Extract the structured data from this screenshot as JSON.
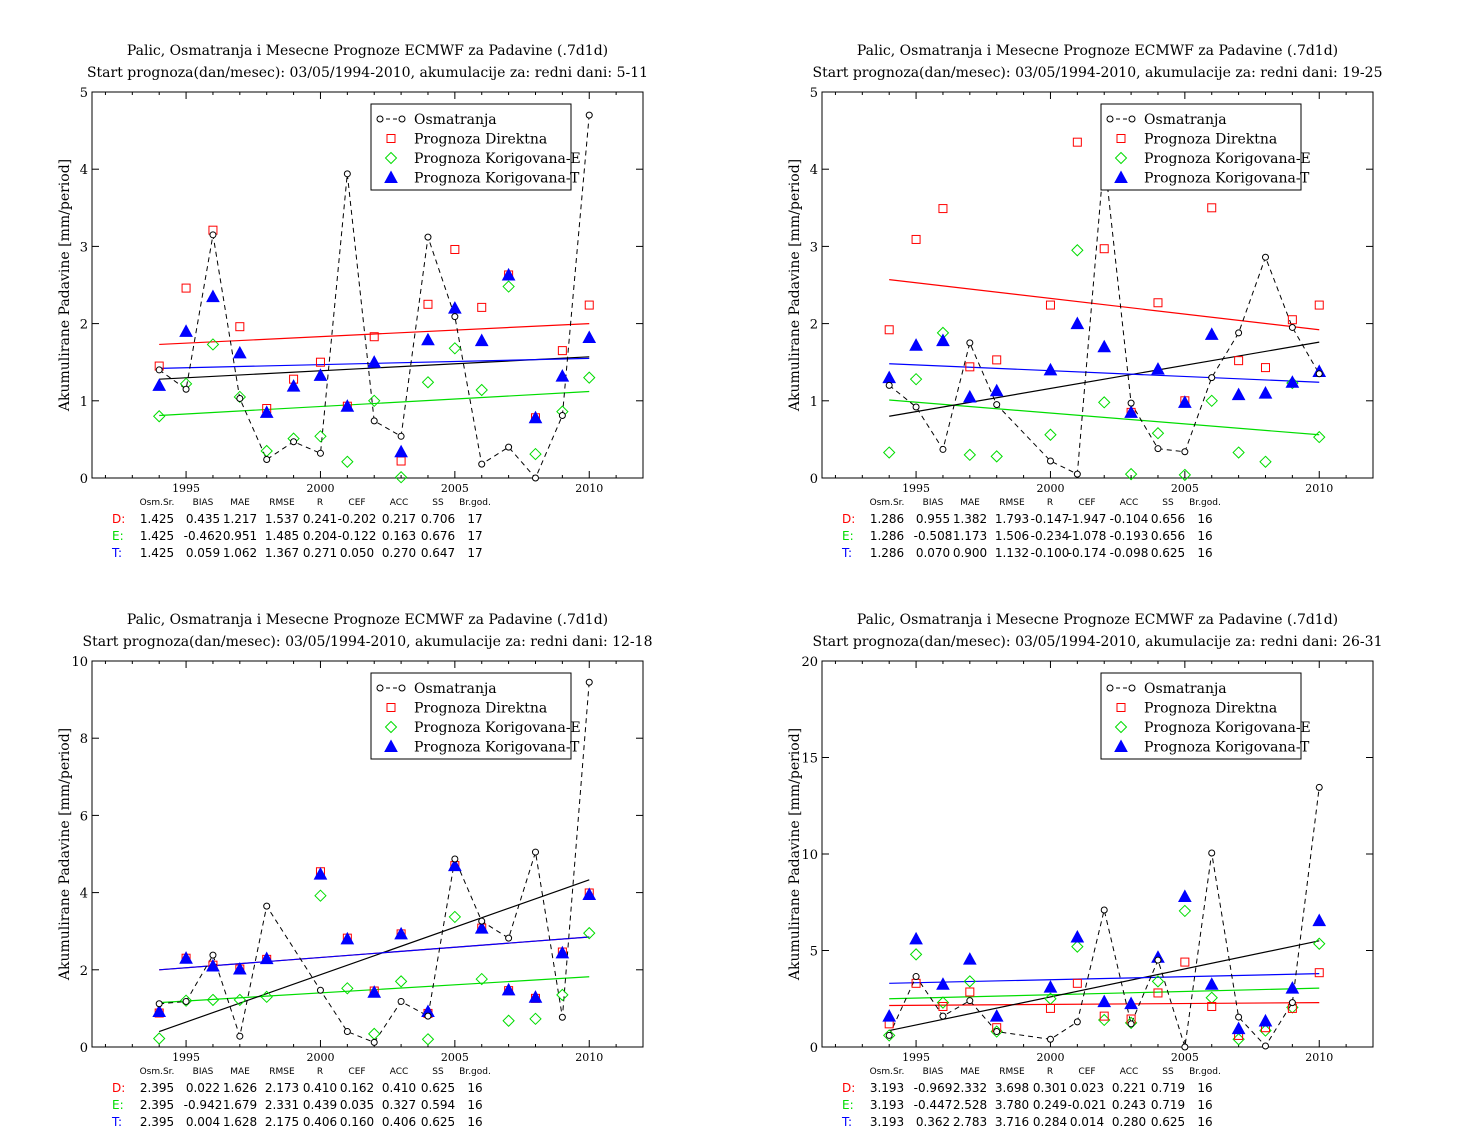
{
  "legend_labels": {
    "obs": "Osmatranja",
    "D": "Prognoza Direktna",
    "E": "Prognoza Korigovana-E",
    "T": "Prognoza Korigovana-T"
  },
  "series_colors": {
    "obs": "#000000",
    "D": "#ff0000",
    "E": "#00dd00",
    "T": "#0000ff"
  },
  "stats_headers": [
    "Osm.Sr.",
    "BIAS",
    "MAE",
    "RMSE",
    "R",
    "CEF",
    "ACC",
    "SS",
    "Br.god."
  ],
  "chart_data": [
    {
      "type": "scatter",
      "title": "Palic, Osmatranja i Mesecne Prognoze ECMWF za Padavine (.7d1d)",
      "subtitle": "Start prognoza(dan/mesec): 03/05/1994-2010, akumulacije za: redni dani: 5-11",
      "xlabel": "",
      "ylabel": "Akumulirane Padavine [mm/period]",
      "xlim": [
        1991.5,
        2012
      ],
      "ylim": [
        0,
        5
      ],
      "xticks": [
        1995,
        2000,
        2005,
        2010
      ],
      "yticks": [
        0,
        1,
        2,
        3,
        4,
        5
      ],
      "x": [
        1994,
        1995,
        1996,
        1997,
        1998,
        1999,
        2000,
        2001,
        2002,
        2003,
        2004,
        2005,
        2006,
        2007,
        2008,
        2009,
        2010
      ],
      "series": [
        {
          "key": "obs",
          "name": "Osmatranja",
          "values": [
            1.4,
            1.15,
            3.15,
            1.03,
            0.24,
            0.47,
            0.32,
            3.94,
            0.74,
            0.54,
            3.12,
            2.09,
            0.18,
            0.4,
            0.0,
            0.81,
            4.7
          ],
          "trend": [
            1.28,
            1.57
          ]
        },
        {
          "key": "D",
          "name": "Prognoza Direktna",
          "values": [
            1.45,
            2.46,
            3.21,
            1.96,
            0.9,
            1.28,
            1.5,
            0.93,
            1.83,
            0.22,
            2.25,
            2.96,
            2.21,
            2.63,
            0.78,
            1.65,
            2.24
          ],
          "trend": [
            1.73,
            2.0
          ]
        },
        {
          "key": "E",
          "name": "Prognoza Korigovana-E",
          "values": [
            0.8,
            1.22,
            1.73,
            1.05,
            0.35,
            0.51,
            0.54,
            0.21,
            1.0,
            0.01,
            1.24,
            1.68,
            1.14,
            2.48,
            0.31,
            0.86,
            1.3
          ],
          "trend": [
            0.81,
            1.12
          ]
        },
        {
          "key": "T",
          "name": "Prognoza Korigovana-T",
          "values": [
            1.2,
            1.9,
            2.35,
            1.62,
            0.85,
            1.19,
            1.33,
            0.93,
            1.5,
            0.34,
            1.79,
            2.2,
            1.78,
            2.63,
            0.78,
            1.32,
            1.82
          ],
          "trend": [
            1.42,
            1.55
          ]
        }
      ],
      "stats": [
        {
          "key": "D",
          "label": "D:",
          "values": [
            "1.425",
            "0.435",
            "1.217",
            "1.537",
            "0.241",
            "-0.202",
            "0.217",
            "0.706",
            "17"
          ]
        },
        {
          "key": "E",
          "label": "E:",
          "values": [
            "1.425",
            "-0.462",
            "0.951",
            "1.485",
            "0.204",
            "-0.122",
            "0.163",
            "0.676",
            "17"
          ]
        },
        {
          "key": "T",
          "label": "T:",
          "values": [
            "1.425",
            "0.059",
            "1.062",
            "1.367",
            "0.271",
            "0.050",
            "0.270",
            "0.647",
            "17"
          ]
        }
      ]
    },
    {
      "type": "scatter",
      "title": "Palic, Osmatranja i Mesecne Prognoze ECMWF za Padavine (.7d1d)",
      "subtitle": "Start prognoza(dan/mesec): 03/05/1994-2010, akumulacije za: redni dani: 19-25",
      "xlabel": "",
      "ylabel": "Akumulirane Padavine [mm/period]",
      "xlim": [
        1991.5,
        2012
      ],
      "ylim": [
        0,
        5
      ],
      "xticks": [
        1995,
        2000,
        2005,
        2010
      ],
      "yticks": [
        0,
        1,
        2,
        3,
        4,
        5
      ],
      "x": [
        1994,
        1995,
        1996,
        1997,
        1998,
        1999,
        2000,
        2001,
        2002,
        2003,
        2004,
        2005,
        2006,
        2007,
        2008,
        2009,
        2010
      ],
      "series": [
        {
          "key": "obs",
          "name": "Osmatranja",
          "values": [
            1.2,
            0.92,
            0.37,
            1.75,
            0.95,
            null,
            0.22,
            0.05,
            4.17,
            0.97,
            0.38,
            0.34,
            1.3,
            1.88,
            2.86,
            1.95,
            1.35
          ],
          "trend": [
            0.8,
            1.76
          ]
        },
        {
          "key": "D",
          "name": "Prognoza Direktna",
          "values": [
            1.92,
            3.09,
            3.49,
            1.44,
            1.53,
            null,
            2.24,
            4.35,
            2.97,
            0.85,
            2.27,
            1.0,
            3.5,
            1.52,
            1.43,
            2.05,
            2.24
          ],
          "trend": [
            2.57,
            1.92
          ]
        },
        {
          "key": "E",
          "name": "Prognoza Korigovana-E",
          "values": [
            0.33,
            1.28,
            1.88,
            0.3,
            0.28,
            null,
            0.56,
            2.95,
            0.98,
            0.05,
            0.58,
            0.04,
            1.0,
            0.33,
            0.21,
            1.23,
            0.53
          ],
          "trend": [
            1.01,
            0.56
          ]
        },
        {
          "key": "T",
          "name": "Prognoza Korigovana-T",
          "values": [
            1.3,
            1.72,
            1.78,
            1.05,
            1.13,
            null,
            1.4,
            2.0,
            1.7,
            0.85,
            1.41,
            0.98,
            1.86,
            1.08,
            1.1,
            1.24,
            1.38
          ],
          "trend": [
            1.48,
            1.24
          ]
        }
      ],
      "stats": [
        {
          "key": "D",
          "label": "D:",
          "values": [
            "1.286",
            "0.955",
            "1.382",
            "1.793",
            "-0.147",
            "-1.947",
            "-0.104",
            "0.656",
            "16"
          ]
        },
        {
          "key": "E",
          "label": "E:",
          "values": [
            "1.286",
            "-0.508",
            "1.173",
            "1.506",
            "-0.234",
            "-1.078",
            "-0.193",
            "0.656",
            "16"
          ]
        },
        {
          "key": "T",
          "label": "T:",
          "values": [
            "1.286",
            "0.070",
            "0.900",
            "1.132",
            "-0.100",
            "-0.174",
            "-0.098",
            "0.625",
            "16"
          ]
        }
      ]
    },
    {
      "type": "scatter",
      "title": "Palic, Osmatranja i Mesecne Prognoze ECMWF za Padavine (.7d1d)",
      "subtitle": "Start prognoza(dan/mesec): 03/05/1994-2010, akumulacije za: redni dani: 12-18",
      "xlabel": "",
      "ylabel": "Akumulirane Padavine [mm/period]",
      "xlim": [
        1991.5,
        2012
      ],
      "ylim": [
        0,
        10
      ],
      "xticks": [
        1995,
        2000,
        2005,
        2010
      ],
      "yticks": [
        0,
        2,
        4,
        6,
        8,
        10
      ],
      "x": [
        1994,
        1995,
        1996,
        1997,
        1998,
        1999,
        2000,
        2001,
        2002,
        2003,
        2004,
        2005,
        2006,
        2007,
        2008,
        2009,
        2010
      ],
      "series": [
        {
          "key": "obs",
          "name": "Osmatranja",
          "values": [
            1.12,
            1.18,
            2.38,
            0.28,
            3.65,
            null,
            1.47,
            0.4,
            0.12,
            1.18,
            0.8,
            4.87,
            3.26,
            2.82,
            5.05,
            0.77,
            9.45
          ],
          "trend": [
            0.4,
            4.33
          ]
        },
        {
          "key": "D",
          "name": "Prognoza Direktna",
          "values": [
            0.88,
            2.3,
            2.12,
            2.02,
            2.27,
            null,
            4.54,
            2.82,
            1.45,
            2.93,
            0.87,
            4.7,
            3.08,
            1.46,
            1.26,
            2.46,
            3.99
          ],
          "trend": [
            2.0,
            2.85
          ]
        },
        {
          "key": "E",
          "name": "Prognoza Korigovana-E",
          "values": [
            0.22,
            1.2,
            1.22,
            1.22,
            1.3,
            null,
            3.92,
            1.52,
            0.34,
            1.7,
            0.2,
            3.37,
            1.76,
            0.68,
            0.73,
            1.35,
            2.95
          ],
          "trend": [
            1.15,
            1.82
          ]
        },
        {
          "key": "T",
          "name": "Prognoza Korigovana-T",
          "values": [
            0.92,
            2.3,
            2.1,
            2.02,
            2.29,
            null,
            4.48,
            2.8,
            1.42,
            2.93,
            0.92,
            4.7,
            3.08,
            1.48,
            1.29,
            2.44,
            3.95
          ],
          "trend": [
            2.0,
            2.85
          ]
        }
      ],
      "stats": [
        {
          "key": "D",
          "label": "D:",
          "values": [
            "2.395",
            "0.022",
            "1.626",
            "2.173",
            "0.410",
            "0.162",
            "0.410",
            "0.625",
            "16"
          ]
        },
        {
          "key": "E",
          "label": "E:",
          "values": [
            "2.395",
            "-0.942",
            "1.679",
            "2.331",
            "0.439",
            "0.035",
            "0.327",
            "0.594",
            "16"
          ]
        },
        {
          "key": "T",
          "label": "T:",
          "values": [
            "2.395",
            "0.004",
            "1.628",
            "2.175",
            "0.406",
            "0.160",
            "0.406",
            "0.625",
            "16"
          ]
        }
      ]
    },
    {
      "type": "scatter",
      "title": "Palic, Osmatranja i Mesecne Prognoze ECMWF za Padavine (.7d1d)",
      "subtitle": "Start prognoza(dan/mesec): 03/05/1994-2010, akumulacije za: redni dani: 26-31",
      "xlabel": "",
      "ylabel": "Akumulirane Padavine [mm/period]",
      "xlim": [
        1991.5,
        2012
      ],
      "ylim": [
        0,
        20
      ],
      "xticks": [
        1995,
        2000,
        2005,
        2010
      ],
      "yticks": [
        0,
        5,
        10,
        15,
        20
      ],
      "x": [
        1994,
        1995,
        1996,
        1997,
        1998,
        1999,
        2000,
        2001,
        2002,
        2003,
        2004,
        2005,
        2006,
        2007,
        2008,
        2009,
        2010
      ],
      "series": [
        {
          "key": "obs",
          "name": "Osmatranja",
          "values": [
            0.6,
            3.65,
            1.6,
            2.4,
            0.8,
            null,
            0.4,
            1.3,
            7.1,
            1.2,
            4.5,
            0.0,
            10.05,
            1.55,
            0.05,
            2.3,
            13.45
          ],
          "trend": [
            0.85,
            5.5
          ]
        },
        {
          "key": "D",
          "name": "Prognoza Direktna",
          "values": [
            1.2,
            3.3,
            2.1,
            2.85,
            1.0,
            null,
            2.0,
            3.3,
            1.6,
            1.45,
            2.8,
            4.4,
            2.1,
            0.6,
            1.0,
            2.0,
            3.85
          ],
          "trend": [
            2.15,
            2.3
          ]
        },
        {
          "key": "E",
          "name": "Prognoza Korigovana-E",
          "values": [
            0.6,
            4.8,
            2.3,
            3.4,
            0.8,
            null,
            2.5,
            5.2,
            1.4,
            1.25,
            3.4,
            7.05,
            2.55,
            0.4,
            0.85,
            2.05,
            5.35
          ],
          "trend": [
            2.5,
            3.05
          ]
        },
        {
          "key": "T",
          "name": "Prognoza Korigovana-T",
          "values": [
            1.6,
            5.6,
            3.25,
            4.55,
            1.6,
            null,
            3.1,
            5.7,
            2.35,
            2.25,
            4.65,
            7.8,
            3.25,
            0.95,
            1.35,
            3.05,
            6.55
          ],
          "trend": [
            3.3,
            3.8
          ]
        }
      ],
      "stats": [
        {
          "key": "D",
          "label": "D:",
          "values": [
            "3.193",
            "-0.969",
            "2.332",
            "3.698",
            "0.301",
            "0.023",
            "0.221",
            "0.719",
            "16"
          ]
        },
        {
          "key": "E",
          "label": "E:",
          "values": [
            "3.193",
            "-0.447",
            "2.528",
            "3.780",
            "0.249",
            "-0.021",
            "0.243",
            "0.719",
            "16"
          ]
        },
        {
          "key": "T",
          "label": "T:",
          "values": [
            "3.193",
            "0.362",
            "2.783",
            "3.716",
            "0.284",
            "0.014",
            "0.280",
            "0.625",
            "16"
          ]
        }
      ]
    }
  ]
}
